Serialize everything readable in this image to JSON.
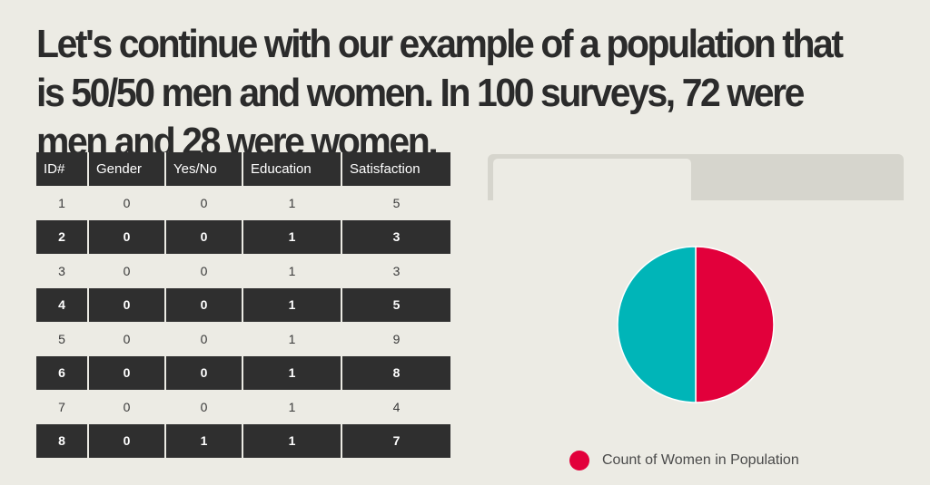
{
  "headline": "Let's continue with our example of a population that is 50/50 men and women. In 100 surveys, 72 were men and 28 were women.",
  "table": {
    "headers": [
      "ID#",
      "Gender",
      "Yes/No",
      "Education",
      "Satisfaction"
    ],
    "rows": [
      [
        "1",
        "0",
        "0",
        "1",
        "5"
      ],
      [
        "2",
        "0",
        "0",
        "1",
        "3"
      ],
      [
        "3",
        "0",
        "0",
        "1",
        "3"
      ],
      [
        "4",
        "0",
        "0",
        "1",
        "5"
      ],
      [
        "5",
        "0",
        "0",
        "1",
        "9"
      ],
      [
        "6",
        "0",
        "0",
        "1",
        "8"
      ],
      [
        "7",
        "0",
        "0",
        "1",
        "4"
      ],
      [
        "8",
        "0",
        "1",
        "1",
        "7"
      ]
    ]
  },
  "tabs": [
    {
      "label": "",
      "active": true
    },
    {
      "label": "",
      "active": false
    }
  ],
  "chart_data": {
    "type": "pie",
    "slices": [
      {
        "name": "Count of Women in Population",
        "value": 50,
        "color": "#e2003b"
      },
      {
        "value": 50,
        "color": "#00b5b8"
      }
    ],
    "legend": [
      "Count of Women in Population"
    ],
    "legend_position": "bottom"
  },
  "colors": {
    "background": "#ecebe4",
    "dark_row": "#2f2f2f",
    "accent_red": "#e2003b",
    "accent_teal": "#00b5b8",
    "tab_bar": "#d6d5cd"
  }
}
